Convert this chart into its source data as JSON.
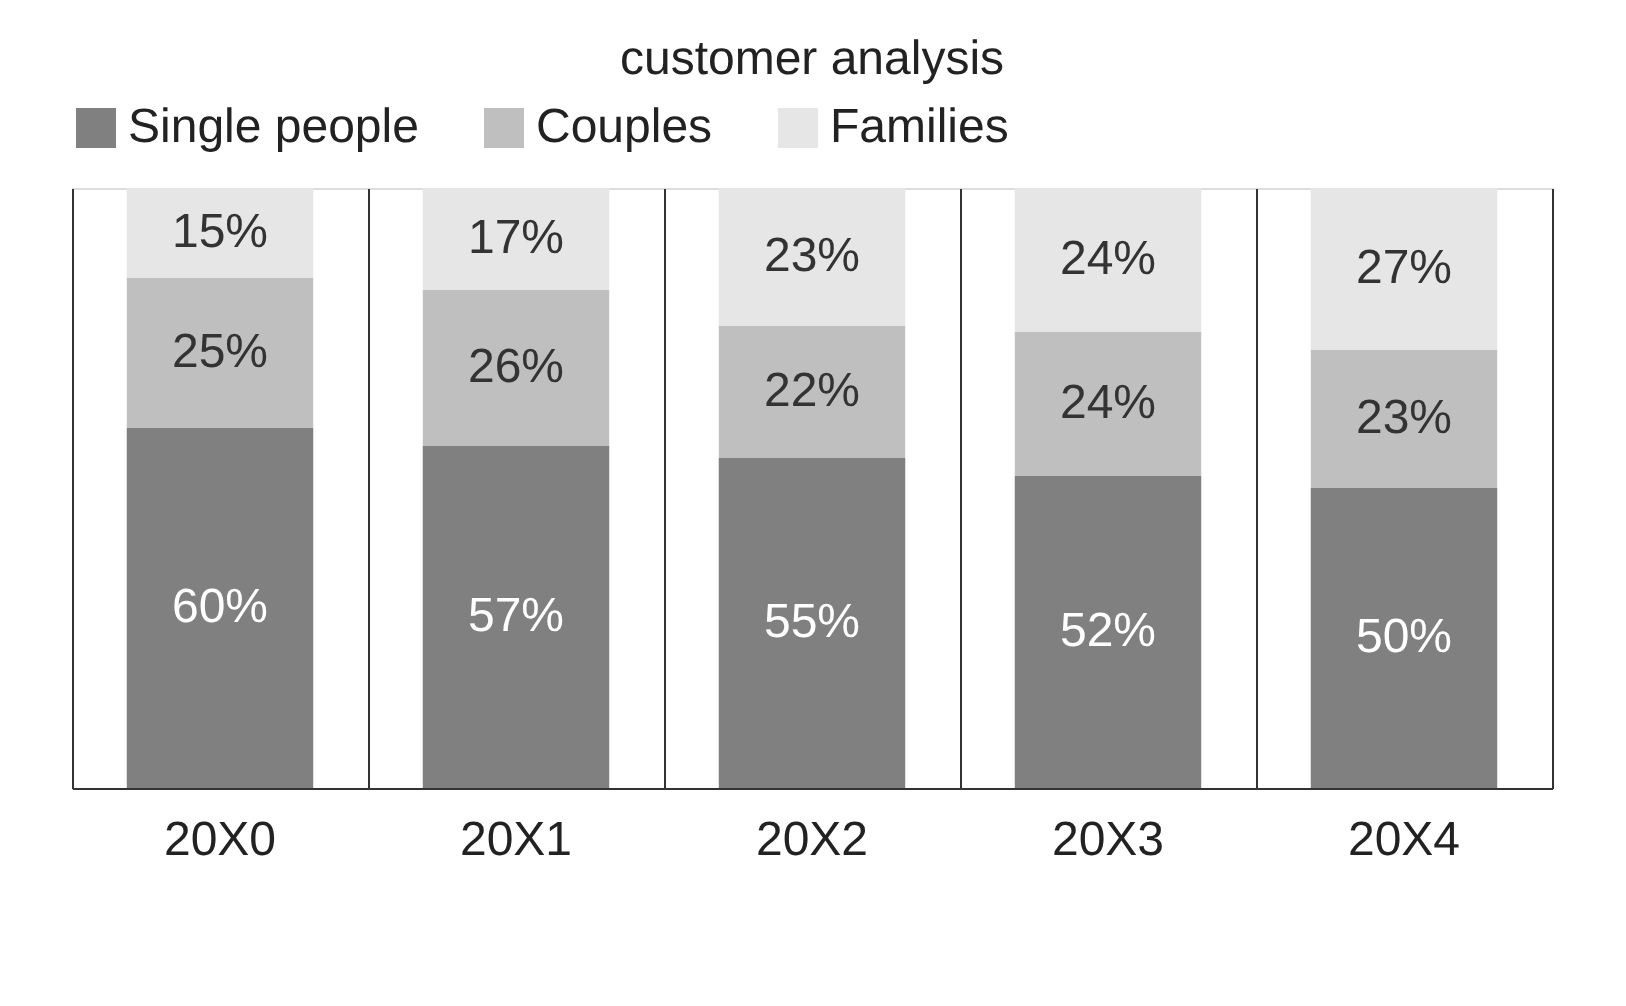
{
  "chart_data": {
    "type": "bar",
    "title": "customer analysis",
    "stacked": true,
    "grid": "x",
    "legend": "top",
    "categories": [
      "20X0",
      "20X1",
      "20X2",
      "20X3",
      "20X4"
    ],
    "series": [
      {
        "name": "Single people",
        "color": "#808080",
        "values": [
          60,
          57,
          55,
          52,
          50
        ],
        "value_labels": [
          "60%",
          "57%",
          "55%",
          "52%",
          "50%"
        ]
      },
      {
        "name": "Couples",
        "color": "#bfbfbf",
        "values": [
          25,
          26,
          22,
          24,
          23
        ],
        "value_labels": [
          "25%",
          "26%",
          "22%",
          "24%",
          "23%"
        ]
      },
      {
        "name": "Families",
        "color": "#e6e6e6",
        "values": [
          15,
          17,
          23,
          24,
          27
        ],
        "value_labels": [
          "15%",
          "17%",
          "23%",
          "24%",
          "27%"
        ]
      }
    ]
  }
}
